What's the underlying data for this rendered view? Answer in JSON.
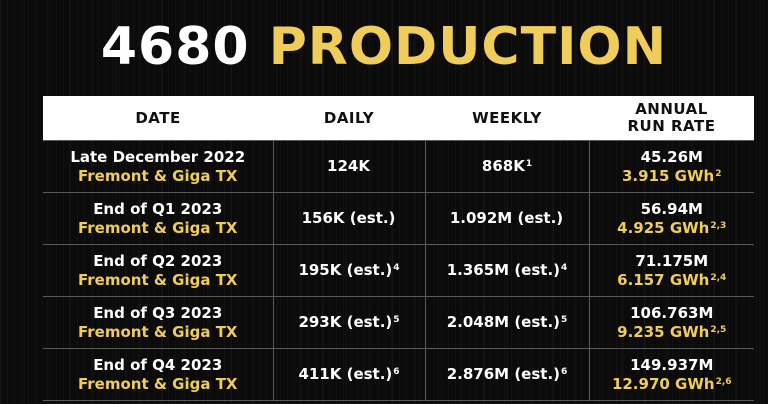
{
  "title": {
    "white": "4680",
    "gold": "PRODUCTION"
  },
  "headers": {
    "date": "DATE",
    "daily": "DAILY",
    "weekly": "WEEKLY",
    "annual_line1": "ANNUAL",
    "annual_line2": "RUN RATE"
  },
  "rows": [
    {
      "date": "Late December 2022",
      "location": "Fremont & Giga TX",
      "daily": "124K",
      "daily_sup": "",
      "weekly": "868K",
      "weekly_sup": "1",
      "annual_units": "45.26M",
      "annual_gwh": "3.915 GWh",
      "annual_sup": "2"
    },
    {
      "date": "End of Q1 2023",
      "location": "Fremont & Giga TX",
      "daily": "156K (est.)",
      "daily_sup": "",
      "weekly": "1.092M (est.)",
      "weekly_sup": "",
      "annual_units": "56.94M",
      "annual_gwh": "4.925 GWh",
      "annual_sup": "2,3"
    },
    {
      "date": "End of Q2 2023",
      "location": "Fremont & Giga TX",
      "daily": "195K (est.)",
      "daily_sup": "4",
      "weekly": "1.365M (est.)",
      "weekly_sup": "4",
      "annual_units": "71.175M",
      "annual_gwh": "6.157 GWh",
      "annual_sup": "2,4"
    },
    {
      "date": "End of Q3 2023",
      "location": "Fremont & Giga TX",
      "daily": "293K (est.)",
      "daily_sup": "5",
      "weekly": "2.048M (est.)",
      "weekly_sup": "5",
      "annual_units": "106.763M",
      "annual_gwh": "9.235 GWh",
      "annual_sup": "2,5"
    },
    {
      "date": "End of Q4 2023",
      "location": "Fremont & Giga TX",
      "daily": "411K (est.)",
      "daily_sup": "6",
      "weekly": "2.876M (est.)",
      "weekly_sup": "6",
      "annual_units": "149.937M",
      "annual_gwh": "12.970 GWh",
      "annual_sup": "2,6"
    }
  ],
  "colors": {
    "accent_gold": "#f0cc5a",
    "background": "#0b0b0b",
    "header_bg": "#ffffff"
  }
}
